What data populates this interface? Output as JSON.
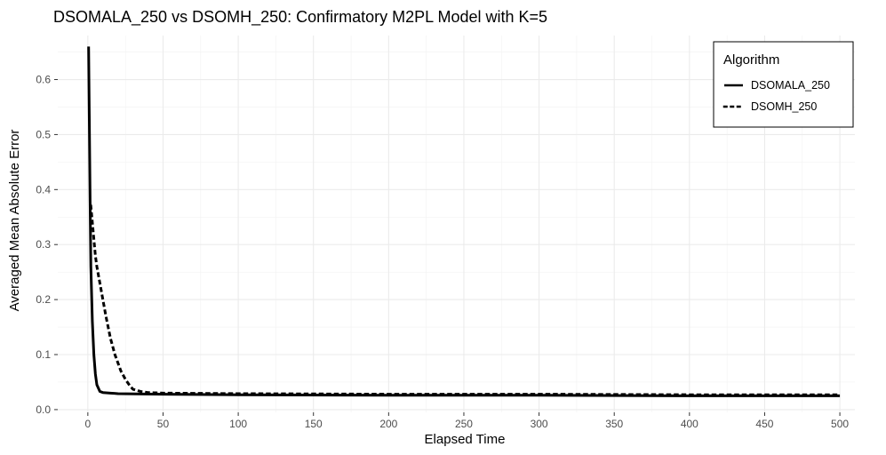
{
  "chart_data": {
    "type": "line",
    "title": "DSOMALA_250 vs DSOMH_250: Confirmatory M2PL Model with K=5",
    "xlabel": "Elapsed Time",
    "ylabel": "Averaged Mean Absolute Error",
    "xlim": [
      -20,
      510
    ],
    "ylim": [
      -0.005,
      0.68
    ],
    "x_ticks": [
      0,
      50,
      100,
      150,
      200,
      250,
      300,
      350,
      400,
      450,
      500
    ],
    "y_ticks": [
      0.0,
      0.1,
      0.2,
      0.3,
      0.4,
      0.5,
      0.6
    ],
    "x_tick_labels": [
      "0",
      "50",
      "100",
      "150",
      "200",
      "250",
      "300",
      "350",
      "400",
      "450",
      "500"
    ],
    "y_tick_labels": [
      "0.0",
      "0.1",
      "0.2",
      "0.3",
      "0.4",
      "0.5",
      "0.6"
    ],
    "grid": true,
    "legend": {
      "title": "Algorithm",
      "placement": "top-right"
    },
    "series": [
      {
        "name": "DSOMALA_250",
        "style": "solid",
        "color": "#000000",
        "x": [
          0.5,
          1,
          1.5,
          2,
          3,
          4,
          5,
          6,
          8,
          10,
          15,
          20,
          50,
          100,
          200,
          300,
          400,
          500
        ],
        "y": [
          0.66,
          0.52,
          0.38,
          0.26,
          0.16,
          0.1,
          0.065,
          0.045,
          0.033,
          0.031,
          0.03,
          0.029,
          0.028,
          0.027,
          0.026,
          0.026,
          0.025,
          0.025
        ]
      },
      {
        "name": "DSOMH_250",
        "style": "dotted",
        "color": "#000000",
        "x": [
          2,
          3,
          4,
          5,
          6,
          8,
          10,
          12,
          15,
          18,
          20,
          22,
          25,
          28,
          30,
          35,
          40,
          50,
          100,
          200,
          300,
          400,
          500
        ],
        "y": [
          0.37,
          0.34,
          0.31,
          0.28,
          0.26,
          0.23,
          0.2,
          0.17,
          0.13,
          0.1,
          0.085,
          0.07,
          0.055,
          0.043,
          0.037,
          0.033,
          0.031,
          0.03,
          0.029,
          0.028,
          0.028,
          0.027,
          0.027
        ]
      }
    ]
  }
}
